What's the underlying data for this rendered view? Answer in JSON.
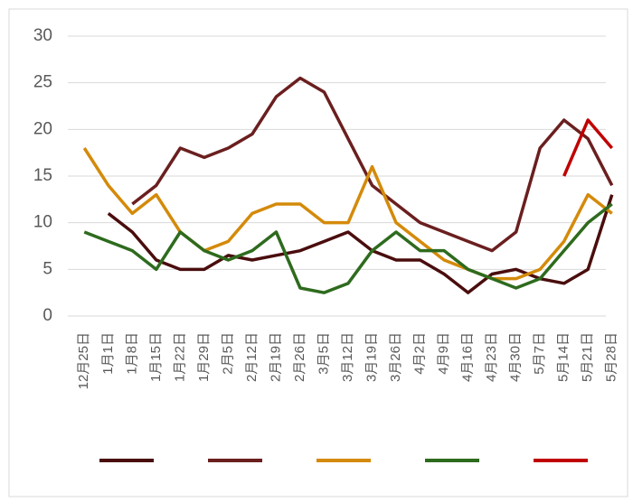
{
  "chart_data": {
    "type": "line",
    "categories": [
      "12月25日",
      "1月1日",
      "1月8日",
      "1月15日",
      "1月22日",
      "1月29日",
      "2月5日",
      "2月12日",
      "2月19日",
      "2月26日",
      "3月5日",
      "3月12日",
      "3月19日",
      "3月26日",
      "4月2日",
      "4月9日",
      "4月16日",
      "4月23日",
      "4月30日",
      "5月7日",
      "5月14日",
      "5月21日",
      "5月28日"
    ],
    "series": [
      {
        "color": "#4a0d0d",
        "values": [
          null,
          11,
          9,
          6,
          5,
          5,
          6.5,
          6,
          6.5,
          7,
          8,
          9,
          7,
          6,
          6,
          4.5,
          2.5,
          4.5,
          5,
          4,
          3.5,
          5,
          13
        ]
      },
      {
        "color": "#6b1f1f",
        "values": [
          null,
          null,
          12,
          14,
          18,
          17,
          18,
          19.5,
          23.5,
          25.5,
          24,
          19,
          14,
          12,
          10,
          9,
          8,
          7,
          9,
          18,
          21,
          19,
          14
        ]
      },
      {
        "color": "#d48a0a",
        "values": [
          18,
          14,
          11,
          13,
          9,
          7,
          8,
          11,
          12,
          12,
          10,
          10,
          16,
          10,
          8,
          6,
          5,
          4,
          4,
          5,
          8,
          13,
          11
        ]
      },
      {
        "color": "#2e6b1e",
        "values": [
          9,
          8,
          7,
          5,
          9,
          7,
          6,
          7,
          9,
          3,
          2.5,
          3.5,
          7,
          9,
          7,
          7,
          5,
          4,
          3,
          4,
          7,
          10,
          12
        ]
      },
      {
        "color": "#c00000",
        "values": [
          null,
          null,
          null,
          null,
          null,
          null,
          null,
          null,
          null,
          null,
          null,
          null,
          null,
          null,
          null,
          null,
          null,
          null,
          null,
          null,
          15,
          21,
          18
        ]
      }
    ],
    "ylim": [
      0,
      30
    ],
    "yticks": [
      0,
      5,
      10,
      15,
      20,
      25,
      30
    ],
    "grid": true,
    "legend": "bottom"
  }
}
